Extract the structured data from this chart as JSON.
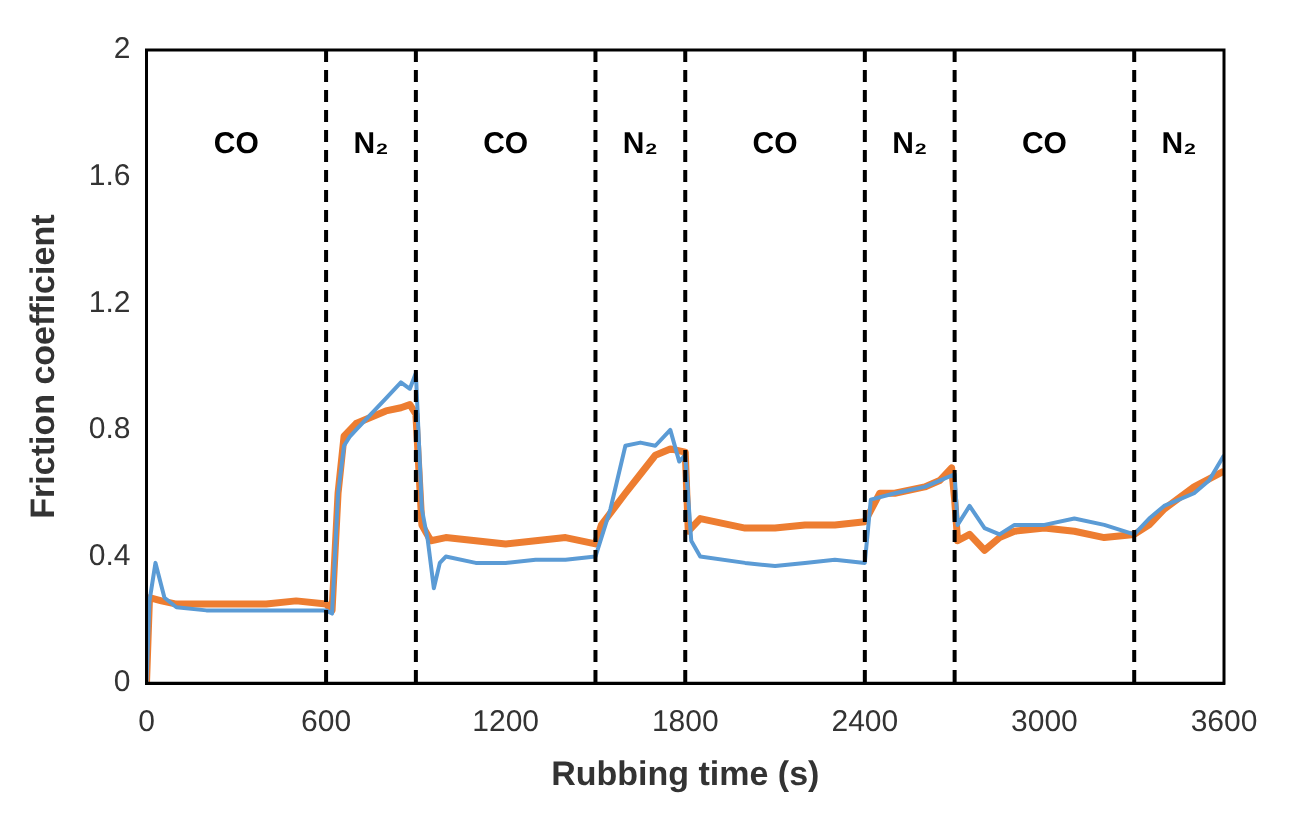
{
  "chart_data": {
    "type": "line",
    "xlabel": "Rubbing time (s)",
    "ylabel": "Friction coefficient",
    "xlim": [
      0,
      3600
    ],
    "xticks": [
      0,
      600,
      1200,
      1800,
      2400,
      3000,
      3600
    ],
    "ylim": [
      0,
      2
    ],
    "yticks": [
      0,
      0.4,
      0.8,
      1.2,
      1.6,
      2
    ],
    "grid": false,
    "legend": false,
    "marker": "none",
    "line_style": "solid",
    "series": [
      {
        "color": "#5b9bd5",
        "x": [
          0,
          10,
          30,
          60,
          100,
          200,
          300,
          400,
          500,
          600,
          620,
          640,
          660,
          680,
          700,
          750,
          800,
          850,
          880,
          900,
          920,
          940,
          960,
          980,
          1000,
          1100,
          1200,
          1300,
          1400,
          1500,
          1550,
          1600,
          1650,
          1700,
          1750,
          1780,
          1800,
          1820,
          1850,
          2000,
          2100,
          2200,
          2300,
          2400,
          2420,
          2500,
          2600,
          2650,
          2700,
          2710,
          2750,
          2800,
          2850,
          2900,
          3000,
          3100,
          3200,
          3300,
          3350,
          3400,
          3500,
          3550,
          3600
        ],
        "values": [
          0,
          0.26,
          0.38,
          0.27,
          0.24,
          0.23,
          0.23,
          0.23,
          0.23,
          0.23,
          0.22,
          0.6,
          0.75,
          0.78,
          0.8,
          0.85,
          0.9,
          0.95,
          0.93,
          0.98,
          0.55,
          0.45,
          0.3,
          0.38,
          0.4,
          0.38,
          0.38,
          0.39,
          0.39,
          0.4,
          0.55,
          0.75,
          0.76,
          0.75,
          0.8,
          0.7,
          0.72,
          0.45,
          0.4,
          0.38,
          0.37,
          0.38,
          0.39,
          0.38,
          0.58,
          0.6,
          0.62,
          0.64,
          0.66,
          0.5,
          0.56,
          0.49,
          0.47,
          0.5,
          0.5,
          0.52,
          0.5,
          0.47,
          0.52,
          0.56,
          0.6,
          0.64,
          0.72
        ]
      },
      {
        "color": "#ed7d31",
        "x": [
          0,
          10,
          50,
          100,
          200,
          300,
          400,
          500,
          600,
          620,
          640,
          660,
          700,
          750,
          800,
          850,
          880,
          900,
          920,
          950,
          1000,
          1100,
          1200,
          1300,
          1400,
          1500,
          1520,
          1600,
          1650,
          1700,
          1750,
          1800,
          1810,
          1850,
          2000,
          2100,
          2200,
          2300,
          2400,
          2450,
          2500,
          2600,
          2650,
          2690,
          2700,
          2710,
          2750,
          2800,
          2850,
          2900,
          3000,
          3100,
          3200,
          3300,
          3350,
          3400,
          3500,
          3600
        ],
        "values": [
          0,
          0.27,
          0.26,
          0.25,
          0.25,
          0.25,
          0.25,
          0.26,
          0.25,
          0.23,
          0.6,
          0.78,
          0.82,
          0.84,
          0.86,
          0.87,
          0.88,
          0.85,
          0.5,
          0.45,
          0.46,
          0.45,
          0.44,
          0.45,
          0.46,
          0.44,
          0.5,
          0.6,
          0.66,
          0.72,
          0.74,
          0.73,
          0.48,
          0.52,
          0.49,
          0.49,
          0.5,
          0.5,
          0.51,
          0.6,
          0.6,
          0.62,
          0.64,
          0.68,
          0.58,
          0.45,
          0.47,
          0.42,
          0.46,
          0.48,
          0.49,
          0.48,
          0.46,
          0.47,
          0.5,
          0.55,
          0.62,
          0.67
        ]
      }
    ],
    "ref_lines": [
      {
        "axis": "x",
        "value": 600,
        "color": "#000000",
        "line_style": "dashed"
      },
      {
        "axis": "x",
        "value": 900,
        "color": "#000000",
        "line_style": "dashed"
      },
      {
        "axis": "x",
        "value": 1500,
        "color": "#000000",
        "line_style": "dashed"
      },
      {
        "axis": "x",
        "value": 1800,
        "color": "#000000",
        "line_style": "dashed"
      },
      {
        "axis": "x",
        "value": 2400,
        "color": "#000000",
        "line_style": "dashed"
      },
      {
        "axis": "x",
        "value": 2700,
        "color": "#000000",
        "line_style": "dashed"
      },
      {
        "axis": "x",
        "value": 3300,
        "color": "#000000",
        "line_style": "dashed"
      }
    ],
    "annotations": [
      "CO",
      "N₂",
      "CO",
      "N₂",
      "CO",
      "N₂",
      "CO",
      "N₂"
    ]
  }
}
